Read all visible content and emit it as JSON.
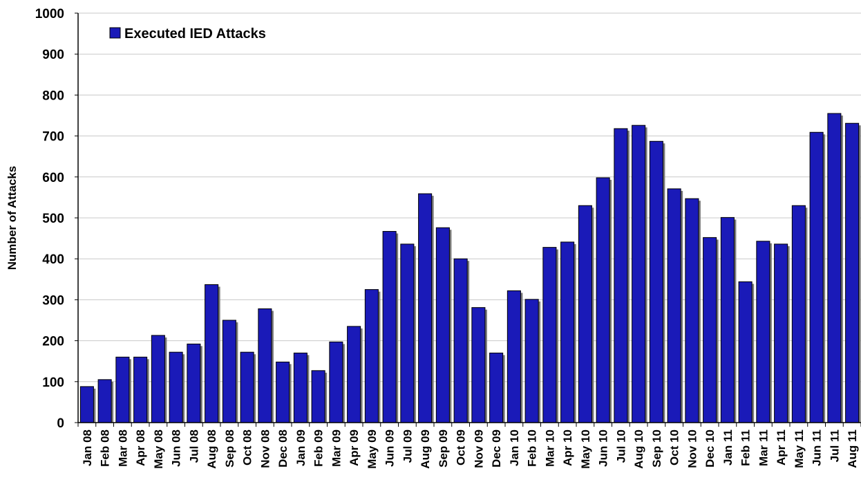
{
  "chart_data": {
    "type": "bar",
    "ylabel": "Number of Attacks",
    "ylim": [
      0,
      1000
    ],
    "yticks": [
      "0",
      "100",
      "200",
      "300",
      "400",
      "500",
      "600",
      "700",
      "800",
      "900",
      "1000"
    ],
    "grid": true,
    "legend_position": "top-left",
    "bar_color": "#1a1ab8",
    "shadow_color": "#7a7a7a",
    "categories": [
      "Jan 08",
      "Feb 08",
      "Mar 08",
      "Apr 08",
      "May 08",
      "Jun 08",
      "Jul 08",
      "Aug 08",
      "Sep 08",
      "Oct 08",
      "Nov 08",
      "Dec 08",
      "Jan 09",
      "Feb 09",
      "Mar 09",
      "Apr 09",
      "May 09",
      "Jun 09",
      "Jul 09",
      "Aug 09",
      "Sep 09",
      "Oct 09",
      "Nov 09",
      "Dec 09",
      "Jan 10",
      "Feb 10",
      "Mar 10",
      "Apr 10",
      "May 10",
      "Jun 10",
      "Jul 10",
      "Aug 10",
      "Sep 10",
      "Oct 10",
      "Nov 10",
      "Dec 10",
      "Jan 11",
      "Feb 11",
      "Mar 11",
      "Apr 11",
      "May 11",
      "Jun 11",
      "Jul 11",
      "Aug 11"
    ],
    "series": [
      {
        "name": "Executed IED Attacks",
        "values": [
          88,
          105,
          160,
          160,
          213,
          172,
          192,
          337,
          250,
          172,
          278,
          148,
          170,
          127,
          197,
          235,
          325,
          467,
          436,
          559,
          476,
          400,
          281,
          170,
          322,
          301,
          428,
          441,
          530,
          598,
          718,
          726,
          687,
          571,
          547,
          452,
          501,
          344,
          443,
          436,
          530,
          709,
          755,
          731
        ]
      }
    ]
  }
}
